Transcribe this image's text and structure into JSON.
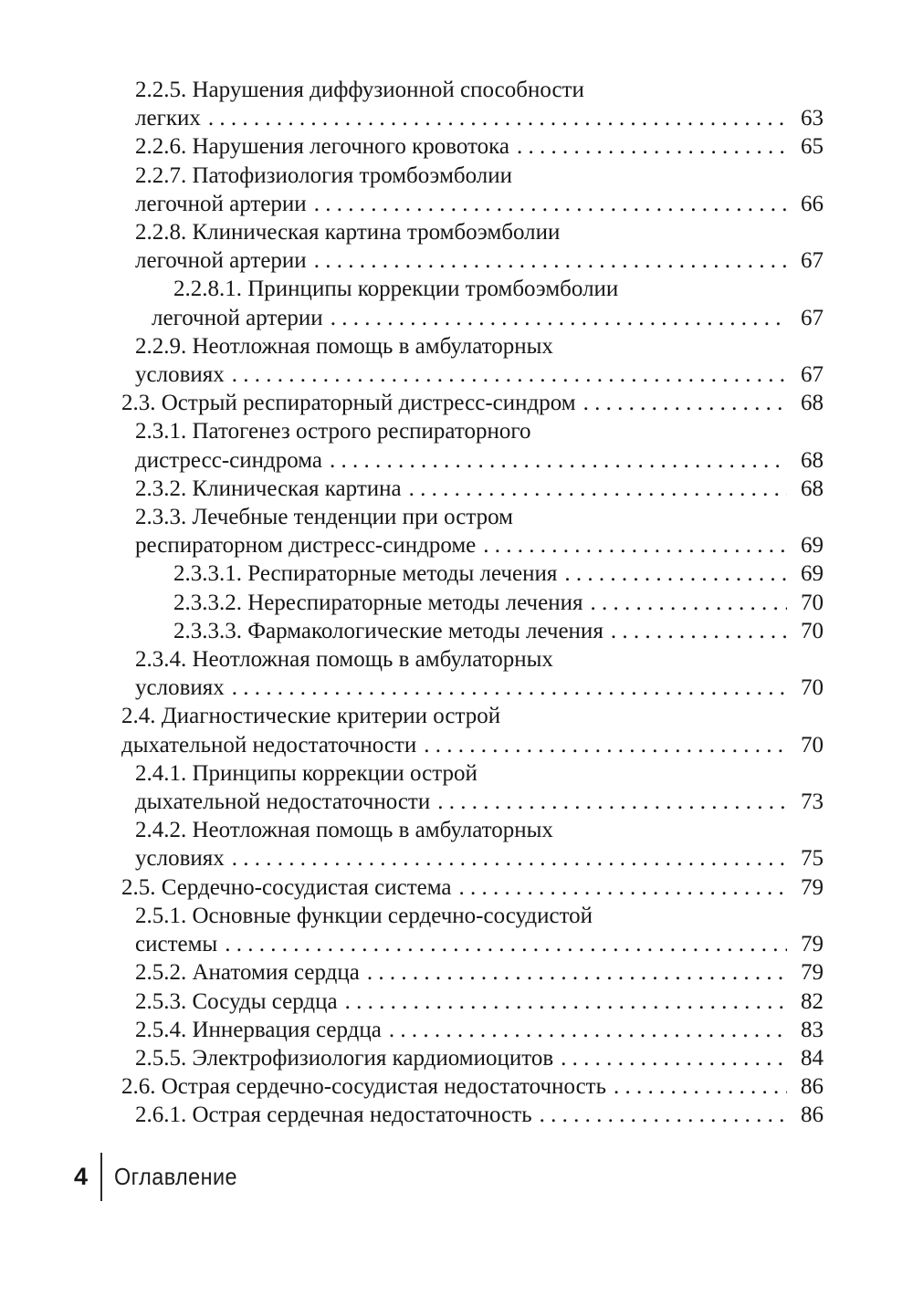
{
  "toc": {
    "entries": [
      {
        "level": "b",
        "lines": [
          "2.2.5. Нарушения диффузионной способности",
          "легких"
        ],
        "page": "63"
      },
      {
        "level": "b",
        "lines": [
          "2.2.6. Нарушения легочного кровотока"
        ],
        "page": "65"
      },
      {
        "level": "b",
        "lines": [
          "2.2.7. Патофизиология тромбоэмболии",
          "легочной артерии"
        ],
        "page": "66"
      },
      {
        "level": "b",
        "lines": [
          "2.2.8. Клиническая картина тромбоэмболии",
          "легочной артерии"
        ],
        "page": "67"
      },
      {
        "level": "c",
        "lines": [
          "2.2.8.1. Принципы коррекции тромбоэмболии",
          "легочной артерии"
        ],
        "page": "67"
      },
      {
        "level": "b",
        "lines": [
          "2.2.9. Неотложная помощь в амбулаторных",
          "условиях"
        ],
        "page": "67"
      },
      {
        "level": "a",
        "lines": [
          "2.3. Острый респираторный дистресс-синдром"
        ],
        "page": "68"
      },
      {
        "level": "b",
        "lines": [
          "2.3.1. Патогенез острого респираторного",
          "дистресс-синдрома"
        ],
        "page": "68"
      },
      {
        "level": "b",
        "lines": [
          "2.3.2. Клиническая картина"
        ],
        "page": "68"
      },
      {
        "level": "b",
        "lines": [
          "2.3.3. Лечебные тенденции при остром",
          "респираторном дистресс-синдроме"
        ],
        "page": "69"
      },
      {
        "level": "c",
        "lines": [
          "2.3.3.1. Респираторные методы лечения"
        ],
        "page": "69"
      },
      {
        "level": "c",
        "lines": [
          "2.3.3.2. Нереспираторные методы лечения"
        ],
        "page": "70"
      },
      {
        "level": "c",
        "lines": [
          "2.3.3.3. Фармакологические методы лечения"
        ],
        "page": "70"
      },
      {
        "level": "b",
        "lines": [
          "2.3.4. Неотложная помощь в амбулаторных",
          "условиях"
        ],
        "page": "70"
      },
      {
        "level": "a",
        "lines": [
          "2.4. Диагностические критерии острой",
          "дыхательной недостаточности"
        ],
        "page": "70"
      },
      {
        "level": "b",
        "lines": [
          "2.4.1. Принципы коррекции острой",
          "дыхательной недостаточности"
        ],
        "page": "73"
      },
      {
        "level": "b",
        "lines": [
          "2.4.2. Неотложная помощь в амбулаторных",
          "условиях"
        ],
        "page": "75"
      },
      {
        "level": "a",
        "lines": [
          "2.5. Сердечно-сосудистая система"
        ],
        "page": "79"
      },
      {
        "level": "b",
        "lines": [
          "2.5.1. Основные функции сердечно-сосудистой",
          "системы"
        ],
        "page": "79"
      },
      {
        "level": "b",
        "lines": [
          "2.5.2. Анатомия сердца"
        ],
        "page": "79"
      },
      {
        "level": "b",
        "lines": [
          "2.5.3. Сосуды сердца"
        ],
        "page": "82"
      },
      {
        "level": "b",
        "lines": [
          "2.5.4. Иннервация сердца"
        ],
        "page": "83"
      },
      {
        "level": "b",
        "lines": [
          "2.5.5. Электрофизиология кардиомиоцитов"
        ],
        "page": "84"
      },
      {
        "level": "a",
        "lines": [
          "2.6. Острая сердечно-сосудистая недостаточность"
        ],
        "page": "86"
      },
      {
        "level": "b",
        "lines": [
          "2.6.1. Острая сердечная недостаточность"
        ],
        "page": "86"
      }
    ]
  },
  "footer": {
    "page_number": "4",
    "section_label": "Оглавление"
  },
  "colors": {
    "text": "#161616",
    "background": "#ffffff"
  }
}
